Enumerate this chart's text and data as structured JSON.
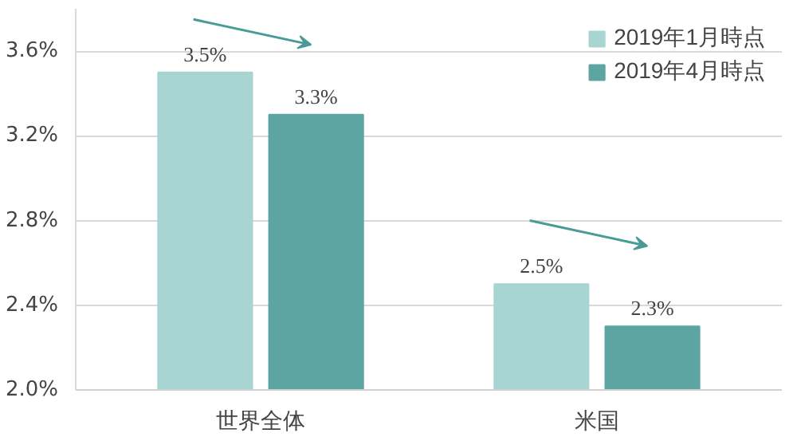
{
  "chart_data": {
    "type": "bar",
    "categories": [
      "世界全体",
      "米国"
    ],
    "series": [
      {
        "name": "2019年1月時点",
        "color": "#a8d4d2",
        "values": [
          3.5,
          2.5
        ],
        "value_labels": [
          "3.5%",
          "2.5%"
        ]
      },
      {
        "name": "2019年4月時点",
        "color": "#5ca5a2",
        "values": [
          3.3,
          2.3
        ],
        "value_labels": [
          "3.3%",
          "2.3%"
        ]
      }
    ],
    "ylim": [
      2.0,
      3.8
    ],
    "yticks": [
      {
        "value": 2.0,
        "label": "2.0%"
      },
      {
        "value": 2.4,
        "label": "2.4%"
      },
      {
        "value": 2.8,
        "label": "2.8%"
      },
      {
        "value": 3.2,
        "label": "3.2%"
      },
      {
        "value": 3.6,
        "label": "3.6%"
      }
    ],
    "grid": "y",
    "legend": "top right"
  }
}
